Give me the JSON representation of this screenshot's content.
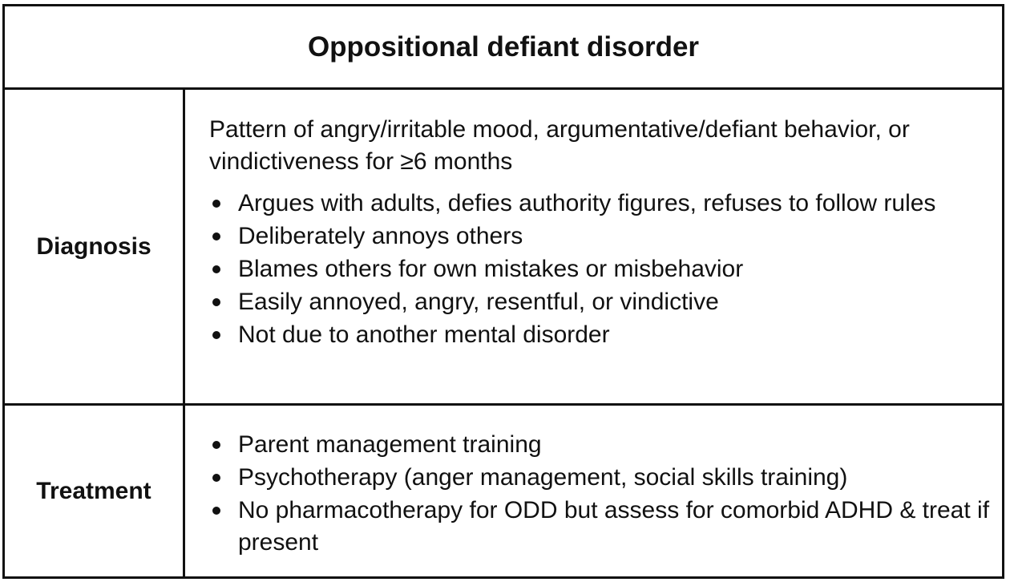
{
  "title": "Oppositional defiant disorder",
  "rows": [
    {
      "label": "Diagnosis",
      "intro": "Pattern of angry/irritable mood, argumentative/defiant behavior, or vindictiveness for ≥6 months",
      "items": [
        "Argues with adults, defies authority figures, refuses to follow rules",
        "Deliberately annoys others",
        "Blames others for own mistakes or misbehavior",
        "Easily annoyed, angry, resentful, or vindictive",
        "Not due to another mental disorder"
      ]
    },
    {
      "label": "Treatment",
      "items": [
        "Parent management training",
        "Psychotherapy (anger management, social skills training)",
        "No pharmacotherapy for ODD but assess for comorbid ADHD & treat if present"
      ]
    }
  ]
}
